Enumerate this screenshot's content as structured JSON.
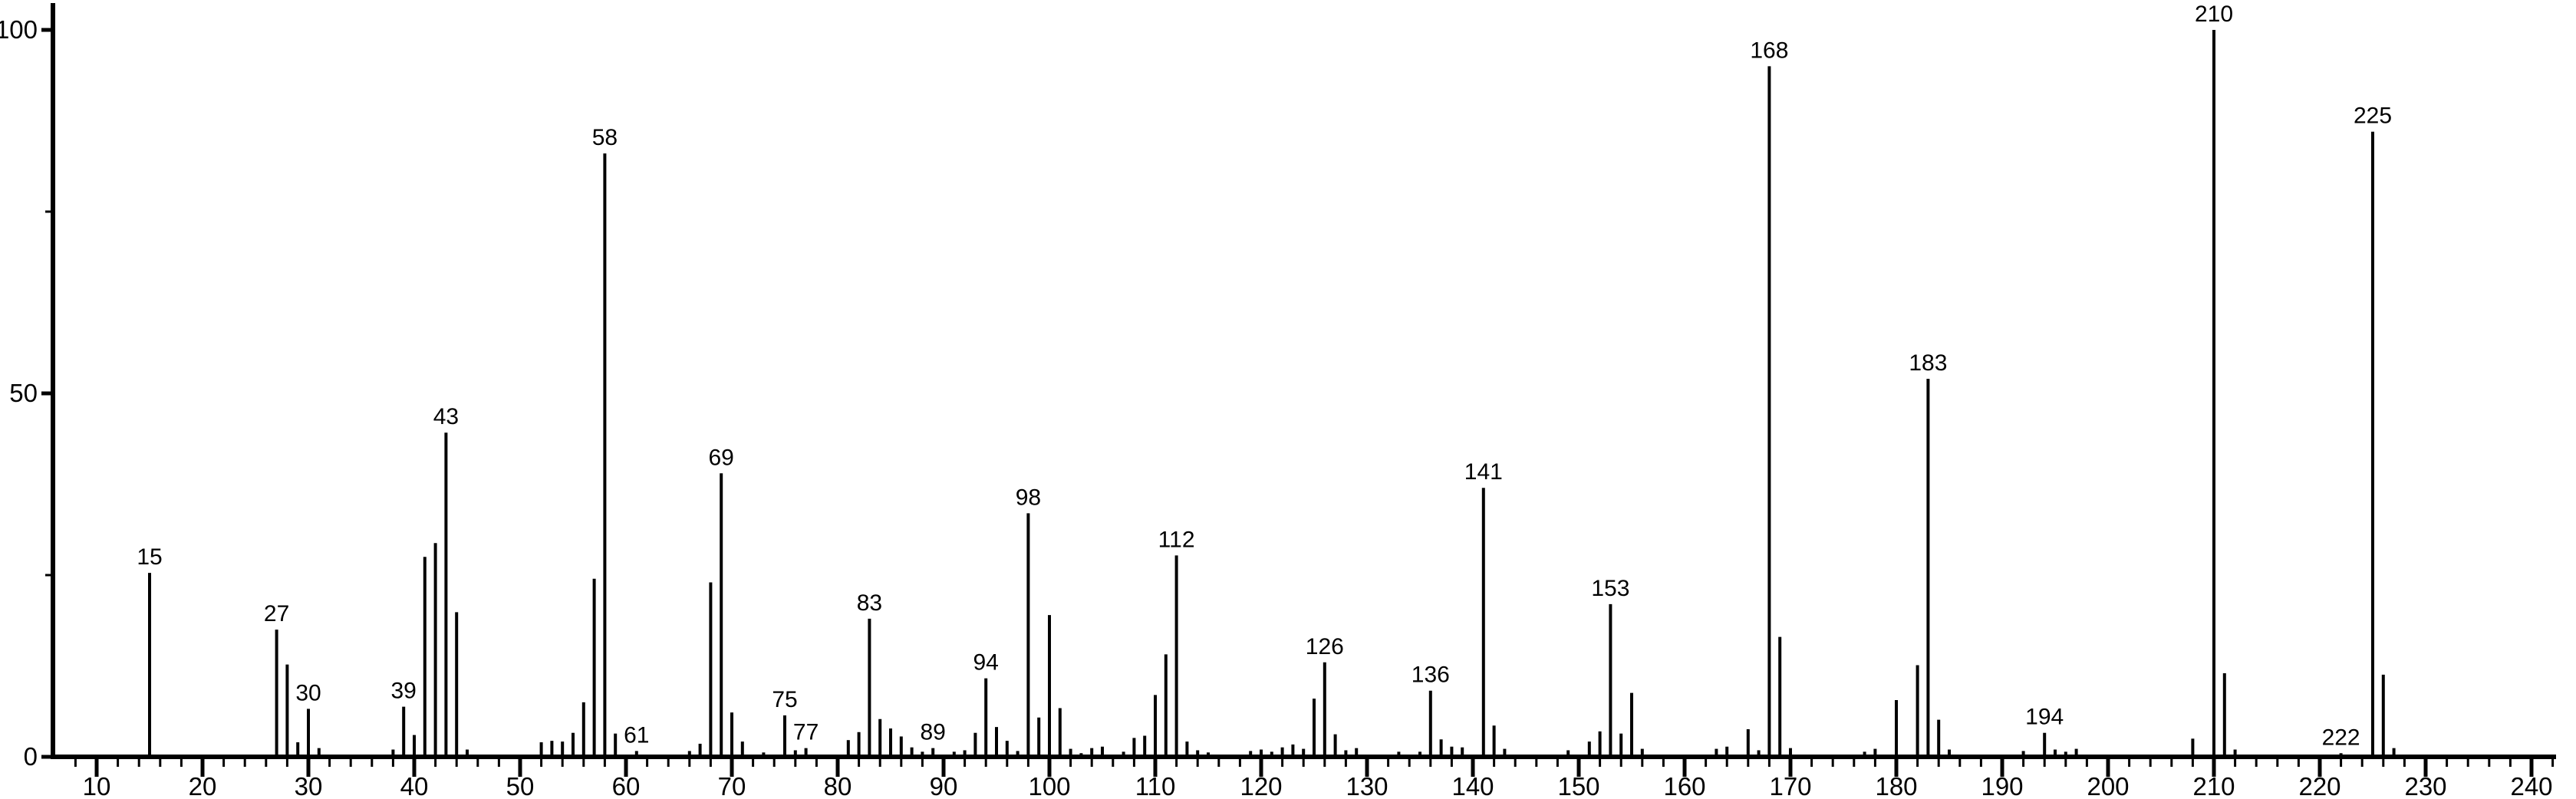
{
  "chart_data": {
    "type": "bar",
    "subtype": "mass-spectrum",
    "title": "",
    "xlabel": "",
    "ylabel": "",
    "legend": "none",
    "grid": false,
    "x_axis": {
      "min": 10,
      "max": 240,
      "major_tick_step": 10,
      "minor_tick_step": 2,
      "tick_labels": [
        "10",
        "20",
        "30",
        "40",
        "50",
        "60",
        "70",
        "80",
        "90",
        "100",
        "110",
        "120",
        "130",
        "140",
        "150",
        "160",
        "170",
        "180",
        "190",
        "200",
        "210",
        "220",
        "230",
        "240"
      ]
    },
    "y_axis": {
      "min": 0,
      "max": 100,
      "major_ticks": [
        0,
        50,
        100
      ],
      "major_tick_labels": [
        "0",
        "50",
        "100"
      ],
      "minor_ticks": [
        25,
        75
      ]
    },
    "peaks_mz_intensity": [
      [
        15,
        25.3
      ],
      [
        27,
        17.5
      ],
      [
        28,
        12.7
      ],
      [
        29,
        2.0
      ],
      [
        30,
        6.6
      ],
      [
        31,
        1.2
      ],
      [
        38,
        1.0
      ],
      [
        39,
        6.9
      ],
      [
        40,
        3.0
      ],
      [
        41,
        27.5
      ],
      [
        42,
        29.4
      ],
      [
        43,
        44.6
      ],
      [
        44,
        19.9
      ],
      [
        45,
        1.0
      ],
      [
        52,
        2.0
      ],
      [
        53,
        2.2
      ],
      [
        54,
        2.1
      ],
      [
        55,
        3.3
      ],
      [
        56,
        7.5
      ],
      [
        57,
        24.5
      ],
      [
        58,
        83.0
      ],
      [
        59,
        3.2
      ],
      [
        61,
        0.8
      ],
      [
        66,
        0.8
      ],
      [
        67,
        1.8
      ],
      [
        68,
        24.0
      ],
      [
        69,
        39.0
      ],
      [
        70,
        6.1
      ],
      [
        71,
        2.1
      ],
      [
        73,
        0.6
      ],
      [
        75,
        5.7
      ],
      [
        76,
        0.9
      ],
      [
        77,
        1.2
      ],
      [
        81,
        2.3
      ],
      [
        82,
        3.4
      ],
      [
        83,
        19.0
      ],
      [
        84,
        5.2
      ],
      [
        85,
        3.9
      ],
      [
        86,
        2.8
      ],
      [
        87,
        1.3
      ],
      [
        88,
        0.7
      ],
      [
        89,
        1.2
      ],
      [
        91,
        0.7
      ],
      [
        92,
        0.9
      ],
      [
        93,
        3.3
      ],
      [
        94,
        10.8
      ],
      [
        95,
        4.1
      ],
      [
        96,
        2.2
      ],
      [
        97,
        0.8
      ],
      [
        98,
        33.5
      ],
      [
        99,
        5.4
      ],
      [
        100,
        19.5
      ],
      [
        101,
        6.7
      ],
      [
        102,
        1.1
      ],
      [
        103,
        0.5
      ],
      [
        104,
        1.2
      ],
      [
        105,
        1.4
      ],
      [
        107,
        0.7
      ],
      [
        108,
        2.6
      ],
      [
        109,
        2.9
      ],
      [
        110,
        8.5
      ],
      [
        111,
        14.1
      ],
      [
        112,
        27.7
      ],
      [
        113,
        2.1
      ],
      [
        114,
        0.9
      ],
      [
        115,
        0.6
      ],
      [
        119,
        0.8
      ],
      [
        120,
        1.0
      ],
      [
        121,
        0.7
      ],
      [
        122,
        1.3
      ],
      [
        123,
        1.7
      ],
      [
        124,
        1.1
      ],
      [
        125,
        8.0
      ],
      [
        126,
        13.0
      ],
      [
        127,
        3.1
      ],
      [
        128,
        0.9
      ],
      [
        129,
        1.2
      ],
      [
        133,
        0.7
      ],
      [
        135,
        0.7
      ],
      [
        136,
        9.1
      ],
      [
        137,
        2.4
      ],
      [
        138,
        1.4
      ],
      [
        139,
        1.3
      ],
      [
        141,
        37.0
      ],
      [
        142,
        4.3
      ],
      [
        143,
        1.1
      ],
      [
        149,
        0.9
      ],
      [
        151,
        2.1
      ],
      [
        152,
        3.5
      ],
      [
        153,
        21.0
      ],
      [
        154,
        3.2
      ],
      [
        155,
        8.8
      ],
      [
        156,
        1.1
      ],
      [
        163,
        1.1
      ],
      [
        164,
        1.4
      ],
      [
        166,
        3.8
      ],
      [
        167,
        0.9
      ],
      [
        168,
        95.0
      ],
      [
        169,
        16.5
      ],
      [
        170,
        1.2
      ],
      [
        177,
        0.7
      ],
      [
        178,
        1.1
      ],
      [
        180,
        7.8
      ],
      [
        182,
        12.6
      ],
      [
        183,
        52.0
      ],
      [
        184,
        5.1
      ],
      [
        185,
        1.0
      ],
      [
        192,
        0.8
      ],
      [
        194,
        3.3
      ],
      [
        195,
        1.0
      ],
      [
        196,
        0.7
      ],
      [
        197,
        1.1
      ],
      [
        208,
        2.5
      ],
      [
        210,
        100.0
      ],
      [
        211,
        11.5
      ],
      [
        212,
        1.0
      ],
      [
        222,
        0.5
      ],
      [
        225,
        86.0
      ],
      [
        226,
        11.3
      ],
      [
        227,
        1.2
      ]
    ],
    "labeled_peaks": [
      15,
      27,
      30,
      39,
      43,
      58,
      61,
      69,
      75,
      77,
      83,
      89,
      94,
      98,
      112,
      126,
      136,
      141,
      153,
      168,
      183,
      194,
      210,
      222,
      225
    ],
    "base_peak_mz": 210
  },
  "colors": {
    "foreground": "#000000",
    "background": "#ffffff"
  }
}
